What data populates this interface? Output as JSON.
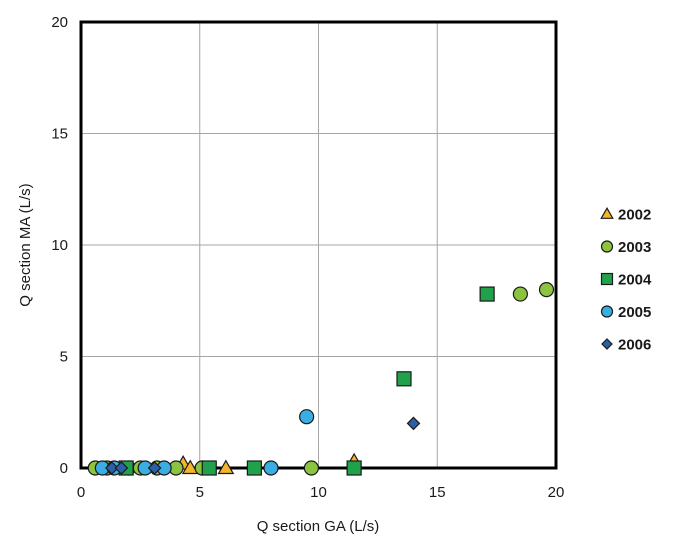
{
  "chart_data": {
    "type": "scatter",
    "title": "",
    "xlabel": "Q section GA (L/s)",
    "ylabel": "Q section MA (L/s)",
    "xlim": [
      0,
      20
    ],
    "ylim": [
      0,
      20
    ],
    "x_ticks": [
      "0",
      "5",
      "10",
      "15",
      "20"
    ],
    "y_ticks": [
      "0",
      "5",
      "10",
      "15",
      "20"
    ],
    "grid": true,
    "legend_position": "right",
    "series": [
      {
        "name": "2002",
        "marker": "triangle",
        "color": "#f5b52a",
        "points": [
          [
            4.3,
            0.2
          ],
          [
            4.6,
            0.0
          ],
          [
            6.1,
            0.0
          ],
          [
            11.5,
            0.3
          ]
        ]
      },
      {
        "name": "2003",
        "marker": "circle",
        "color": "#8cc43f",
        "points": [
          [
            0.6,
            0.0
          ],
          [
            1.1,
            0.0
          ],
          [
            2.0,
            0.0
          ],
          [
            2.5,
            0.0
          ],
          [
            3.2,
            0.0
          ],
          [
            4.0,
            0.0
          ],
          [
            5.1,
            0.0
          ],
          [
            9.7,
            0.0
          ],
          [
            18.5,
            7.8
          ],
          [
            19.6,
            8.0
          ]
        ]
      },
      {
        "name": "2004",
        "marker": "square",
        "color": "#22a14b",
        "points": [
          [
            1.9,
            0.0
          ],
          [
            5.4,
            0.0
          ],
          [
            7.3,
            0.0
          ],
          [
            11.5,
            0.0
          ],
          [
            13.6,
            4.0
          ],
          [
            17.1,
            7.8
          ]
        ]
      },
      {
        "name": "2005",
        "marker": "circle",
        "color": "#3aaee3",
        "points": [
          [
            0.9,
            0.0
          ],
          [
            1.4,
            0.0
          ],
          [
            2.7,
            0.0
          ],
          [
            3.5,
            0.0
          ],
          [
            8.0,
            0.0
          ],
          [
            9.5,
            2.3
          ]
        ]
      },
      {
        "name": "2006",
        "marker": "diamond",
        "color": "#2b5fa6",
        "points": [
          [
            1.3,
            0.0
          ],
          [
            1.7,
            0.0
          ],
          [
            3.1,
            0.0
          ],
          [
            14.0,
            2.0
          ]
        ]
      }
    ]
  }
}
